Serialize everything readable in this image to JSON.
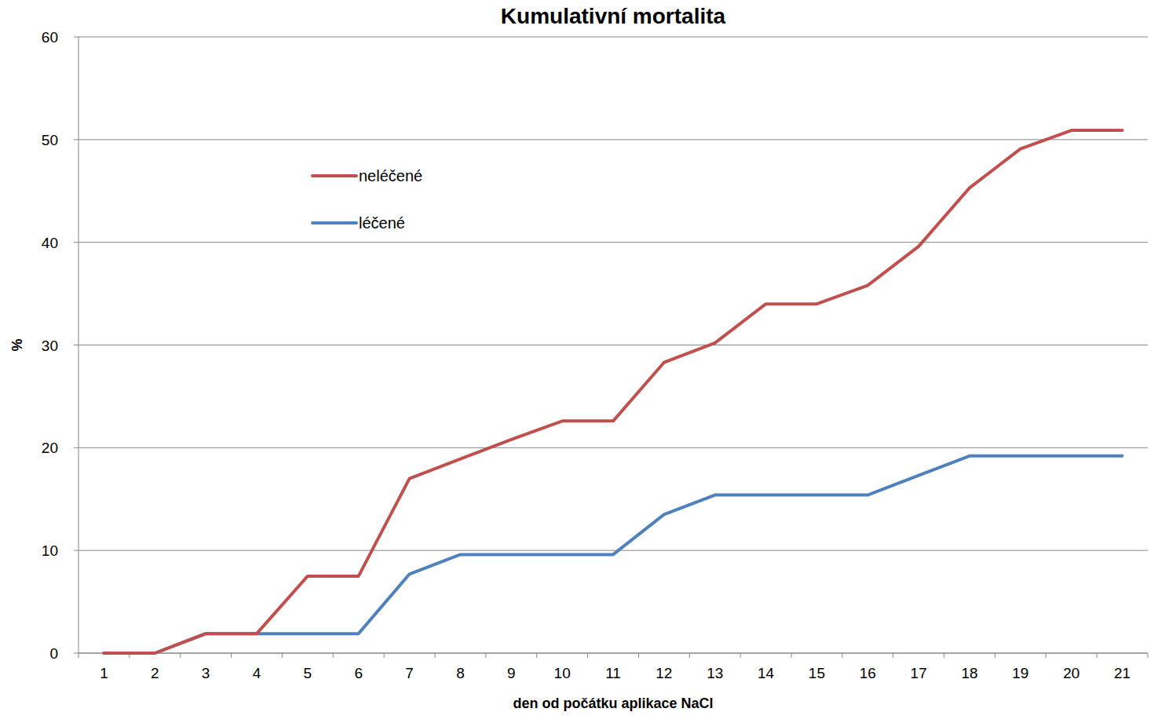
{
  "chart_data": {
    "type": "line",
    "title": "Kumulativní mortalita",
    "x_label": "den od počátku aplikace NaCl",
    "y_label": "%",
    "categories": [
      "1",
      "2",
      "3",
      "4",
      "5",
      "6",
      "7",
      "8",
      "9",
      "10",
      "11",
      "12",
      "13",
      "14",
      "15",
      "16",
      "17",
      "18",
      "19",
      "20",
      "21"
    ],
    "series": [
      {
        "name": "neléčené",
        "color": "#c0504d",
        "values": [
          0,
          0,
          1.9,
          1.9,
          7.5,
          7.5,
          17.0,
          18.9,
          20.8,
          22.6,
          22.6,
          28.3,
          30.2,
          34.0,
          34.0,
          35.8,
          39.6,
          45.3,
          49.1,
          50.9,
          50.9
        ]
      },
      {
        "name": "léčené",
        "color": "#4f81bd",
        "values": [
          0,
          0,
          1.9,
          1.9,
          1.9,
          1.9,
          7.7,
          9.6,
          9.6,
          9.6,
          9.6,
          13.5,
          15.4,
          15.4,
          15.4,
          15.4,
          17.3,
          19.2,
          19.2,
          19.2,
          19.2
        ]
      }
    ],
    "ylim": [
      0,
      60
    ],
    "yticks": [
      0,
      10,
      20,
      30,
      40,
      50,
      60
    ],
    "grid": true,
    "legend": "upper left"
  }
}
